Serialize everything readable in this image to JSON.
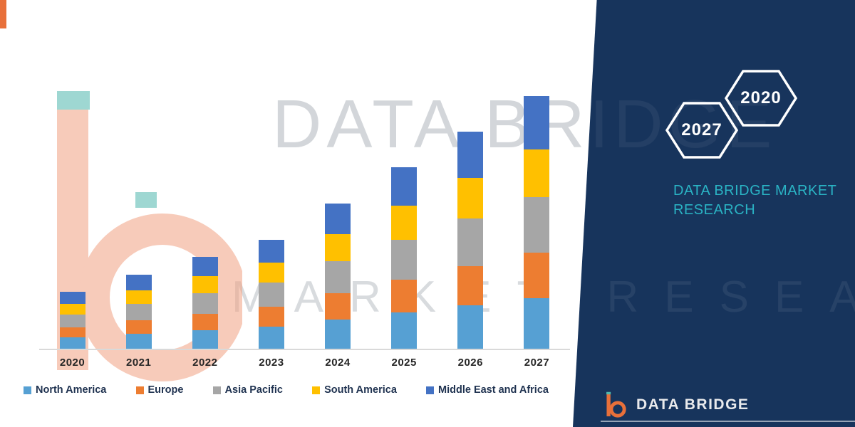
{
  "brand": {
    "name": "DATA BRIDGE",
    "tagline": "DATA BRIDGE MARKET RESEARCH",
    "watermark_line1": "DATA BRIDGE",
    "watermark_line2": "MARKET RESEARCH",
    "accent_teal": "#2ab3c4",
    "accent_orange": "#e8703a",
    "panel_navy": "#17345c"
  },
  "hexagons": [
    {
      "label": "2027"
    },
    {
      "label": "2020"
    }
  ],
  "chart_data": {
    "type": "bar",
    "stacked": true,
    "title": "",
    "xlabel": "",
    "ylabel": "",
    "ylim": [
      0,
      400
    ],
    "grid": false,
    "legend_position": "bottom",
    "categories": [
      "2020",
      "2021",
      "2022",
      "2023",
      "2024",
      "2025",
      "2026",
      "2027"
    ],
    "series": [
      {
        "name": "North America",
        "color": "#56a0d3",
        "values": [
          16,
          21,
          26,
          31,
          41,
          51,
          61,
          71
        ]
      },
      {
        "name": "Europe",
        "color": "#ed7d31",
        "values": [
          14,
          19,
          23,
          28,
          37,
          46,
          55,
          64
        ]
      },
      {
        "name": "Asia Pacific",
        "color": "#a6a6a6",
        "values": [
          18,
          23,
          29,
          34,
          45,
          56,
          67,
          78
        ]
      },
      {
        "name": "South America",
        "color": "#ffc000",
        "values": [
          15,
          19,
          24,
          28,
          38,
          48,
          57,
          67
        ]
      },
      {
        "name": "Middle East and Africa",
        "color": "#4472c4",
        "values": [
          17,
          22,
          27,
          32,
          43,
          54,
          65,
          75
        ]
      }
    ]
  }
}
